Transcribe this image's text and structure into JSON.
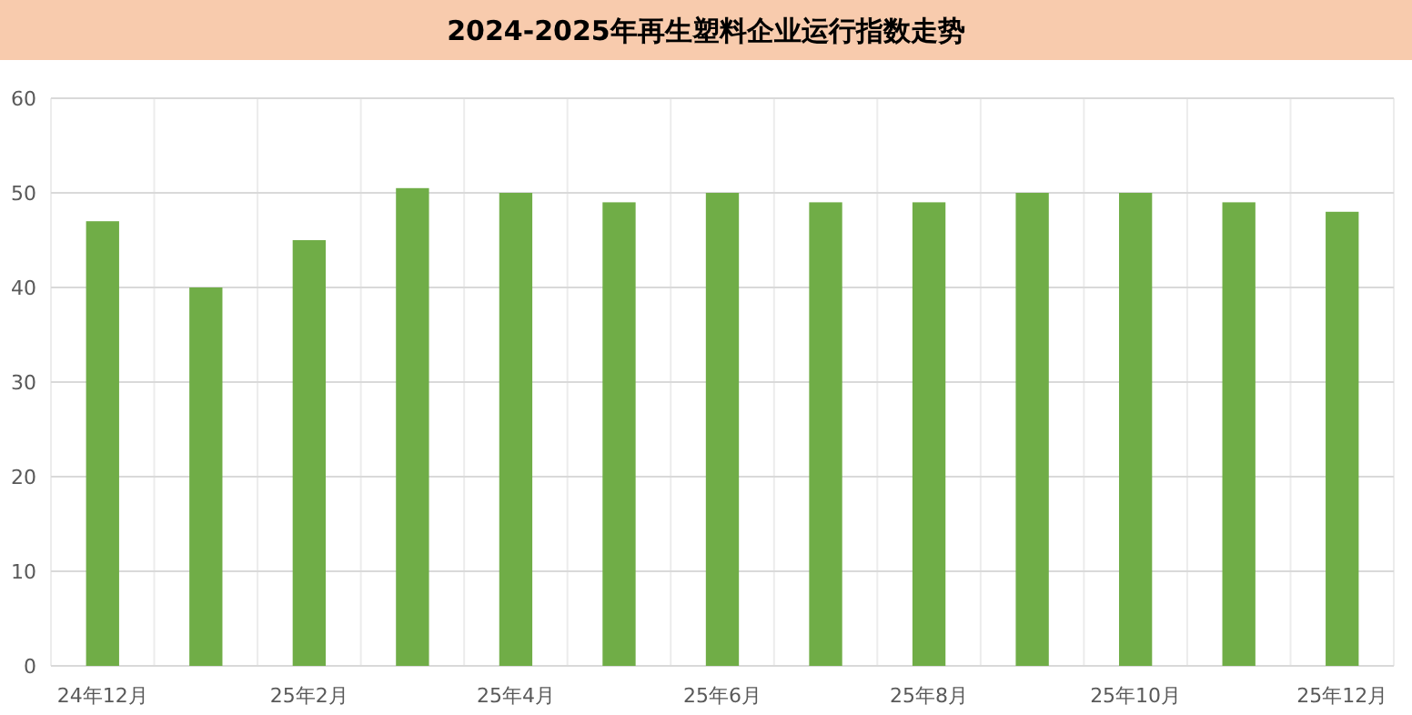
{
  "chart_data": {
    "type": "bar",
    "title": "2024-2025年再生塑料企业运行指数走势",
    "categories": [
      "24年12月",
      null,
      "25年2月",
      null,
      "25年4月",
      null,
      "25年6月",
      null,
      "25年8月",
      null,
      "25年10月",
      null,
      "25年12月"
    ],
    "values": [
      47,
      40,
      45,
      50.5,
      50,
      49,
      50,
      49,
      49,
      50,
      50,
      49,
      48
    ],
    "color": "#70ad47",
    "ylim": [
      0,
      60
    ],
    "yticks": [
      0,
      10,
      20,
      30,
      40,
      50,
      60
    ],
    "grid": true
  }
}
